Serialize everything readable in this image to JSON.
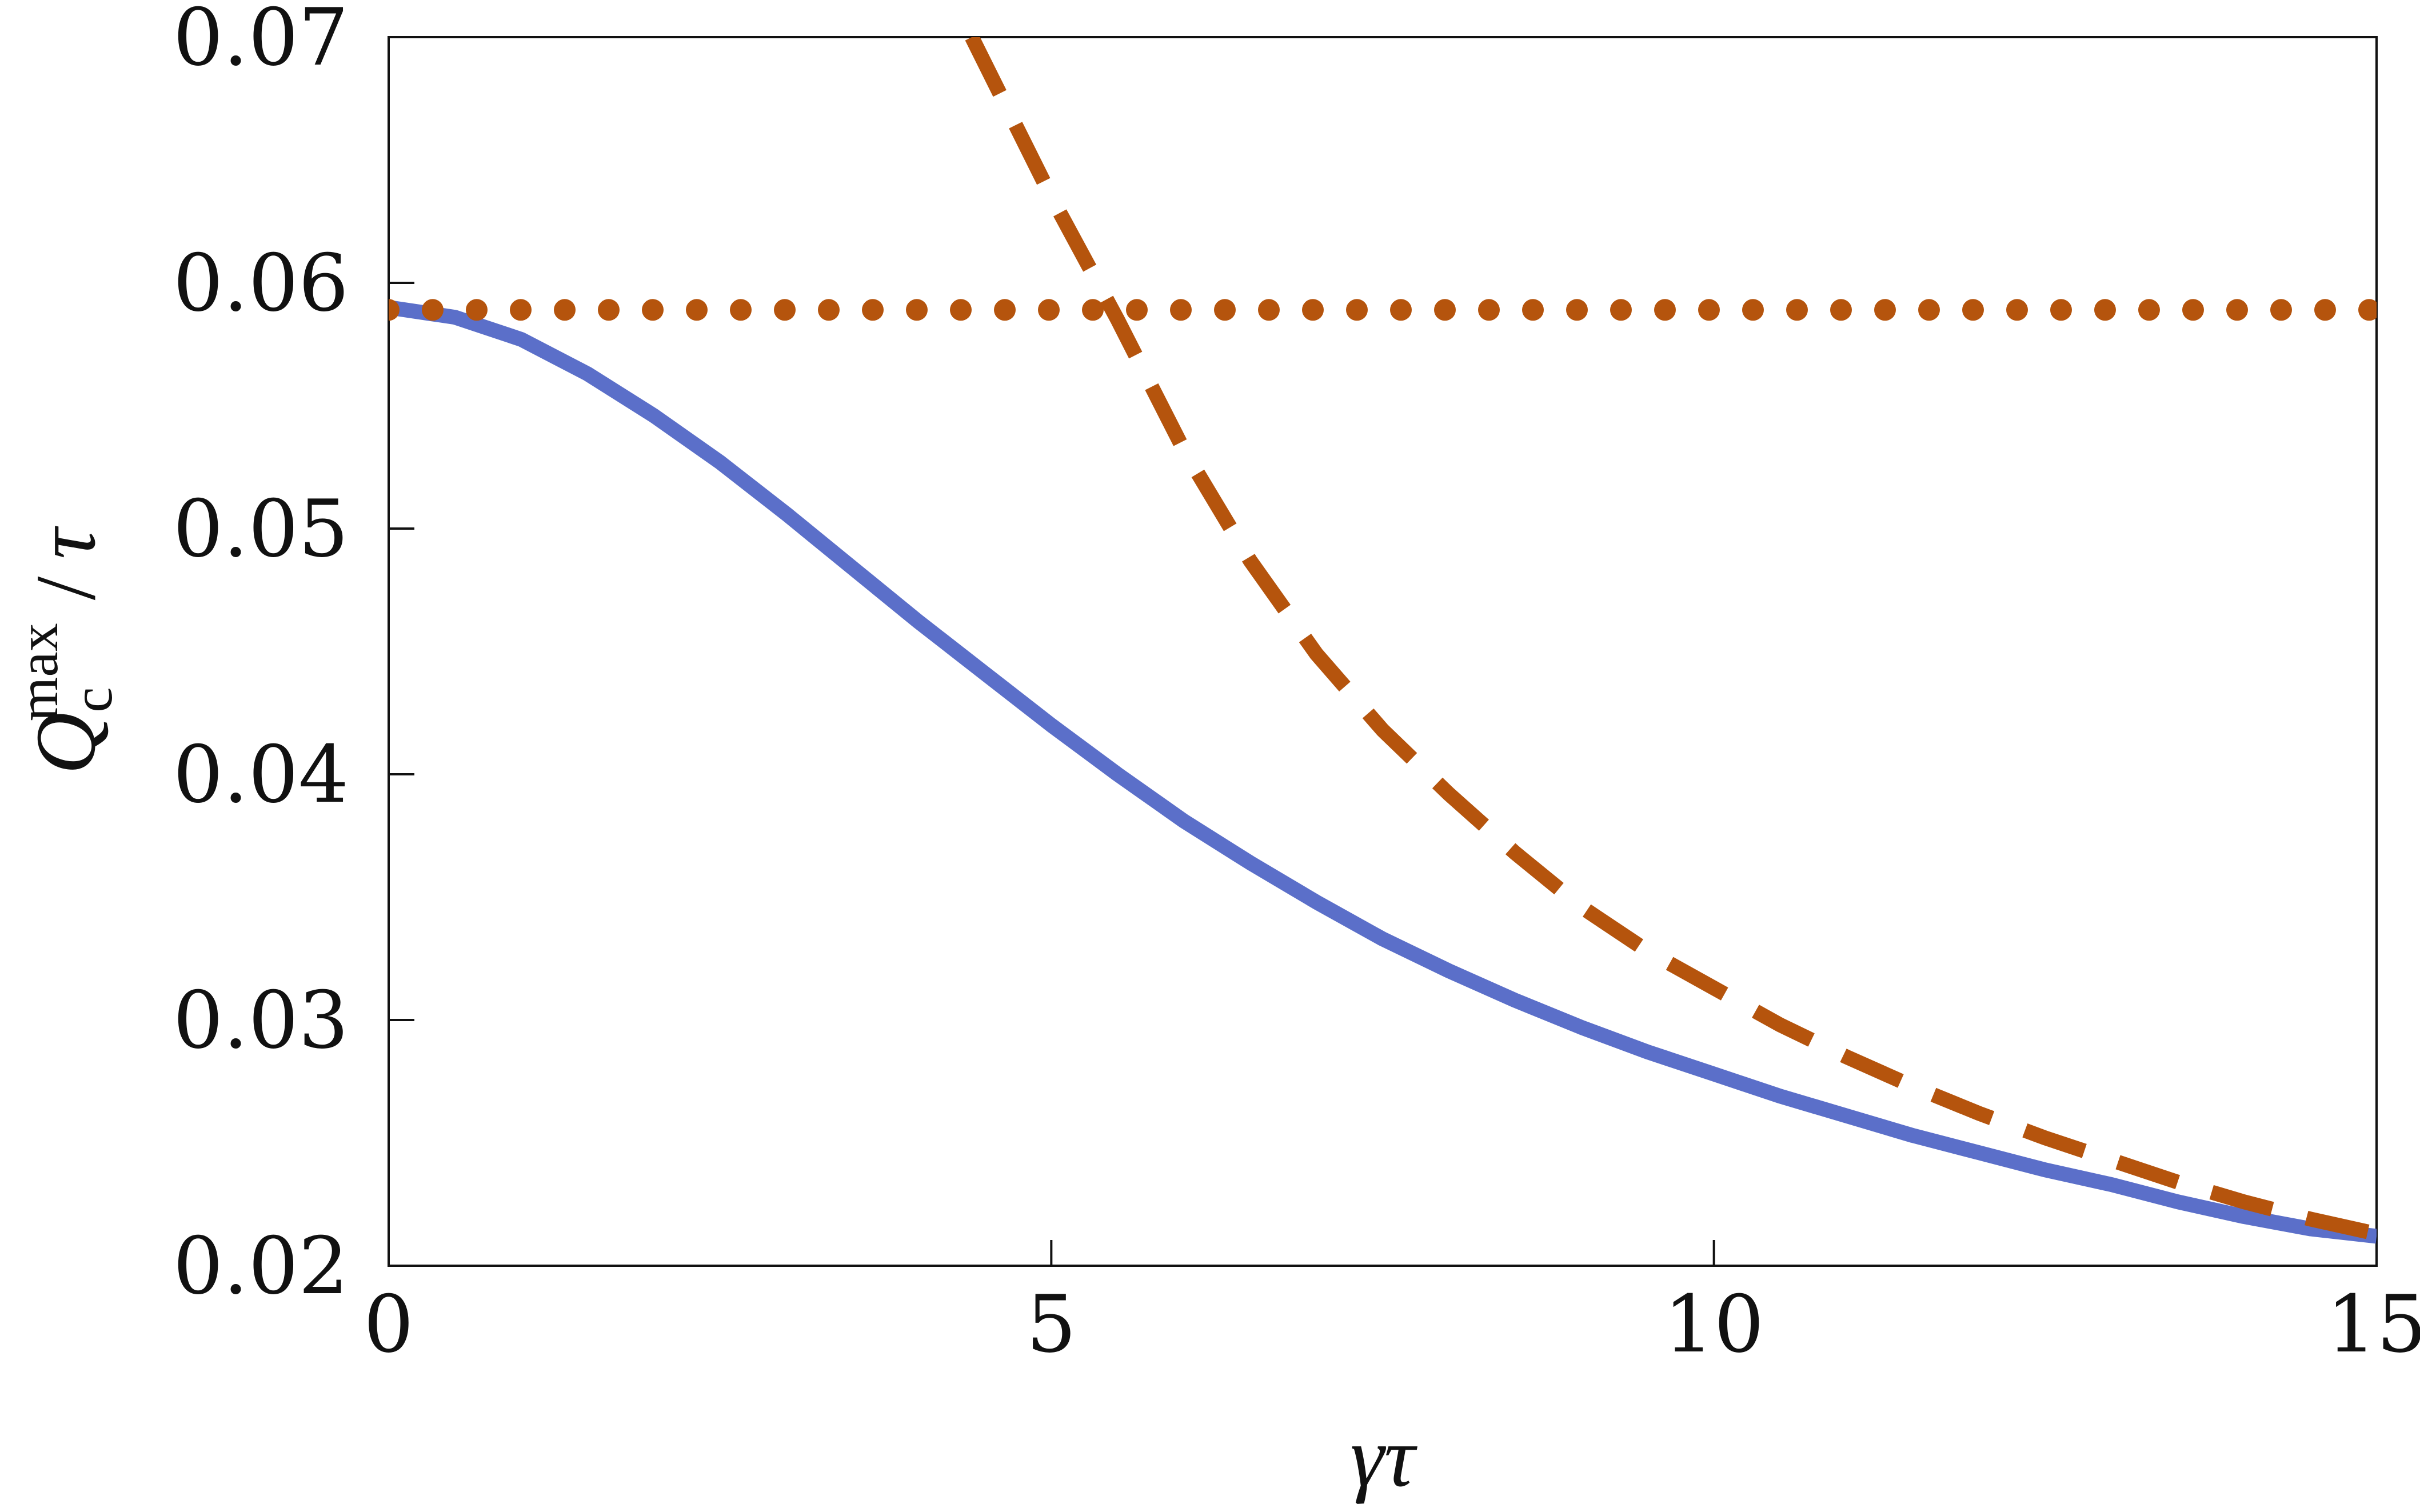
{
  "chart_data": {
    "type": "line",
    "title": "",
    "xlabel": "γτ",
    "ylabel": {
      "symbol": "Q",
      "subscript": "c",
      "superscript": "max",
      "denominator": "τ"
    },
    "xlim": [
      0,
      15
    ],
    "ylim": [
      0.02,
      0.07
    ],
    "x_ticks": [
      "0",
      "5",
      "10",
      "15"
    ],
    "y_ticks": [
      "0.02",
      "0.03",
      "0.04",
      "0.05",
      "0.06",
      "0.07"
    ],
    "grid": false,
    "legend": "none",
    "series": [
      {
        "style": "solid",
        "color": "#5b6fc9",
        "x": [
          0,
          0.5,
          1,
          1.5,
          2,
          2.5,
          3,
          3.5,
          4,
          4.5,
          5,
          5.5,
          6,
          6.5,
          7,
          7.5,
          8,
          8.5,
          9,
          9.5,
          10,
          10.5,
          11,
          11.5,
          12,
          12.5,
          13,
          13.5,
          14,
          14.5,
          15
        ],
        "y": [
          0.059,
          0.0586,
          0.0577,
          0.0563,
          0.0546,
          0.0527,
          0.0506,
          0.0484,
          0.0462,
          0.0441,
          0.042,
          0.04,
          0.0381,
          0.0364,
          0.0348,
          0.0333,
          0.032,
          0.0308,
          0.0297,
          0.0287,
          0.0278,
          0.0269,
          0.0261,
          0.0253,
          0.0246,
          0.0239,
          0.0233,
          0.0226,
          0.022,
          0.0215,
          0.0212
        ]
      },
      {
        "style": "dashed",
        "color": "#b5540d",
        "x": [
          4.4,
          5,
          5.5,
          6,
          6.5,
          7,
          7.5,
          8,
          8.5,
          9,
          9.5,
          10,
          10.5,
          11,
          11.5,
          12,
          12.5,
          13,
          13.5,
          14,
          14.5,
          15
        ],
        "y": [
          0.07,
          0.0635,
          0.0585,
          0.0532,
          0.0487,
          0.0449,
          0.0418,
          0.0392,
          0.0368,
          0.0346,
          0.0328,
          0.0313,
          0.0298,
          0.0285,
          0.0273,
          0.0262,
          0.0252,
          0.0243,
          0.0234,
          0.0226,
          0.0219,
          0.0213
        ]
      },
      {
        "style": "dotted",
        "color": "#b5540d",
        "x": [
          0,
          15
        ],
        "y": [
          0.0589,
          0.0589
        ]
      }
    ]
  }
}
